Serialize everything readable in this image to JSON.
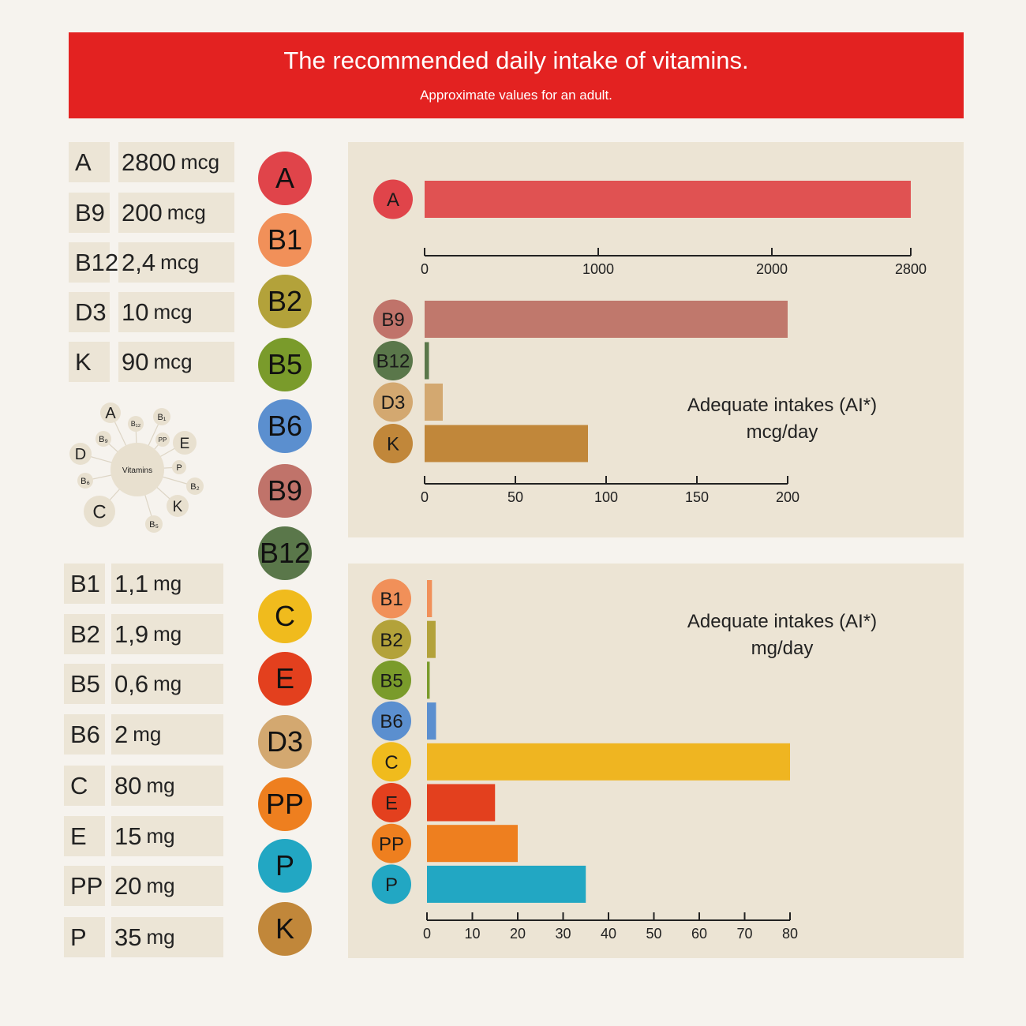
{
  "header": {
    "title": "The recommended daily intake of vitamins.",
    "subtitle": "Approximate values for an adult."
  },
  "mcg_table": [
    {
      "name": "A",
      "value": "2800",
      "unit": "mcg"
    },
    {
      "name": "B9",
      "value": "200",
      "unit": "mcg"
    },
    {
      "name": "B12",
      "value": "2,4",
      "unit": "mcg"
    },
    {
      "name": "D3",
      "value": "10",
      "unit": "mcg"
    },
    {
      "name": "K",
      "value": "90",
      "unit": "mcg"
    }
  ],
  "mg_table": [
    {
      "name": "B1",
      "value": "1,1",
      "unit": "mg"
    },
    {
      "name": "B2",
      "value": "1,9",
      "unit": "mg"
    },
    {
      "name": "B5",
      "value": "0,6",
      "unit": "mg"
    },
    {
      "name": "B6",
      "value": "2",
      "unit": "mg"
    },
    {
      "name": "C",
      "value": "80",
      "unit": "mg"
    },
    {
      "name": "E",
      "value": "15",
      "unit": "mg"
    },
    {
      "name": "PP",
      "value": "20",
      "unit": "mg"
    },
    {
      "name": "P",
      "value": "35",
      "unit": "mg"
    }
  ],
  "vitamin_circles": [
    {
      "label": "A",
      "color": "#e0444a"
    },
    {
      "label": "B1",
      "color": "#f19059"
    },
    {
      "label": "B2",
      "color": "#b3a23a"
    },
    {
      "label": "B5",
      "color": "#7a9b2b"
    },
    {
      "label": "B6",
      "color": "#5b8fcf"
    },
    {
      "label": "B9",
      "color": "#c0736a"
    },
    {
      "label": "B12",
      "color": "#5a774a"
    },
    {
      "label": "C",
      "color": "#f0bb1d"
    },
    {
      "label": "E",
      "color": "#e3401e"
    },
    {
      "label": "D3",
      "color": "#d3a870"
    },
    {
      "label": "PP",
      "color": "#ee7f1f"
    },
    {
      "label": "P",
      "color": "#22a7c3"
    },
    {
      "label": "K",
      "color": "#c1873a"
    }
  ],
  "diagram": {
    "center": "Vitamins",
    "nodes": [
      "A",
      "B₁₂",
      "B₁",
      "B₉",
      "PP",
      "E",
      "D",
      "P",
      "B₆",
      "B₂",
      "C",
      "K",
      "B₅"
    ]
  },
  "chart_data": [
    {
      "type": "bar",
      "orientation": "horizontal",
      "categories": [
        "A"
      ],
      "values": [
        2800
      ],
      "xlim": [
        0,
        2800
      ],
      "ticks": [
        0,
        1000,
        2000,
        2800
      ],
      "tick_labels": [
        "0",
        "1000",
        "2000",
        "2800"
      ],
      "colors": [
        "#e05252"
      ],
      "badge_colors": [
        "#e0444a"
      ]
    },
    {
      "type": "bar",
      "orientation": "horizontal",
      "title": "Adequate intakes (AI*)",
      "subtitle": "mcg/day",
      "categories": [
        "B9",
        "B12",
        "D3",
        "K"
      ],
      "values": [
        200,
        2.4,
        10,
        90
      ],
      "xlim": [
        0,
        200
      ],
      "ticks": [
        0,
        50,
        100,
        150,
        200
      ],
      "tick_labels": [
        "0",
        "50",
        "100",
        "150",
        "200"
      ],
      "colors": [
        "#c0786c",
        "#5a774a",
        "#d3a870",
        "#c1873a"
      ],
      "badge_colors": [
        "#c0736a",
        "#5a774a",
        "#d3a870",
        "#c1873a"
      ]
    },
    {
      "type": "bar",
      "orientation": "horizontal",
      "title": "Adequate intakes (AI*)",
      "subtitle": "mg/day",
      "categories": [
        "B1",
        "B2",
        "B5",
        "B6",
        "C",
        "E",
        "PP",
        "P"
      ],
      "values": [
        1.1,
        1.9,
        0.6,
        2,
        80,
        15,
        20,
        35
      ],
      "xlim": [
        0,
        80
      ],
      "ticks": [
        0,
        10,
        20,
        30,
        40,
        50,
        60,
        70,
        80
      ],
      "tick_labels": [
        "0",
        "10",
        "20",
        "30",
        "40",
        "50",
        "60",
        "70",
        "80"
      ],
      "colors": [
        "#f19059",
        "#b3a23a",
        "#7a9b2b",
        "#5b8fcf",
        "#efb521",
        "#e3401e",
        "#ee7f1f",
        "#22a7c3"
      ],
      "badge_colors": [
        "#f19059",
        "#b3a23a",
        "#7a9b2b",
        "#5b8fcf",
        "#f0bb1d",
        "#e3401e",
        "#ee7f1f",
        "#22a7c3"
      ]
    }
  ]
}
